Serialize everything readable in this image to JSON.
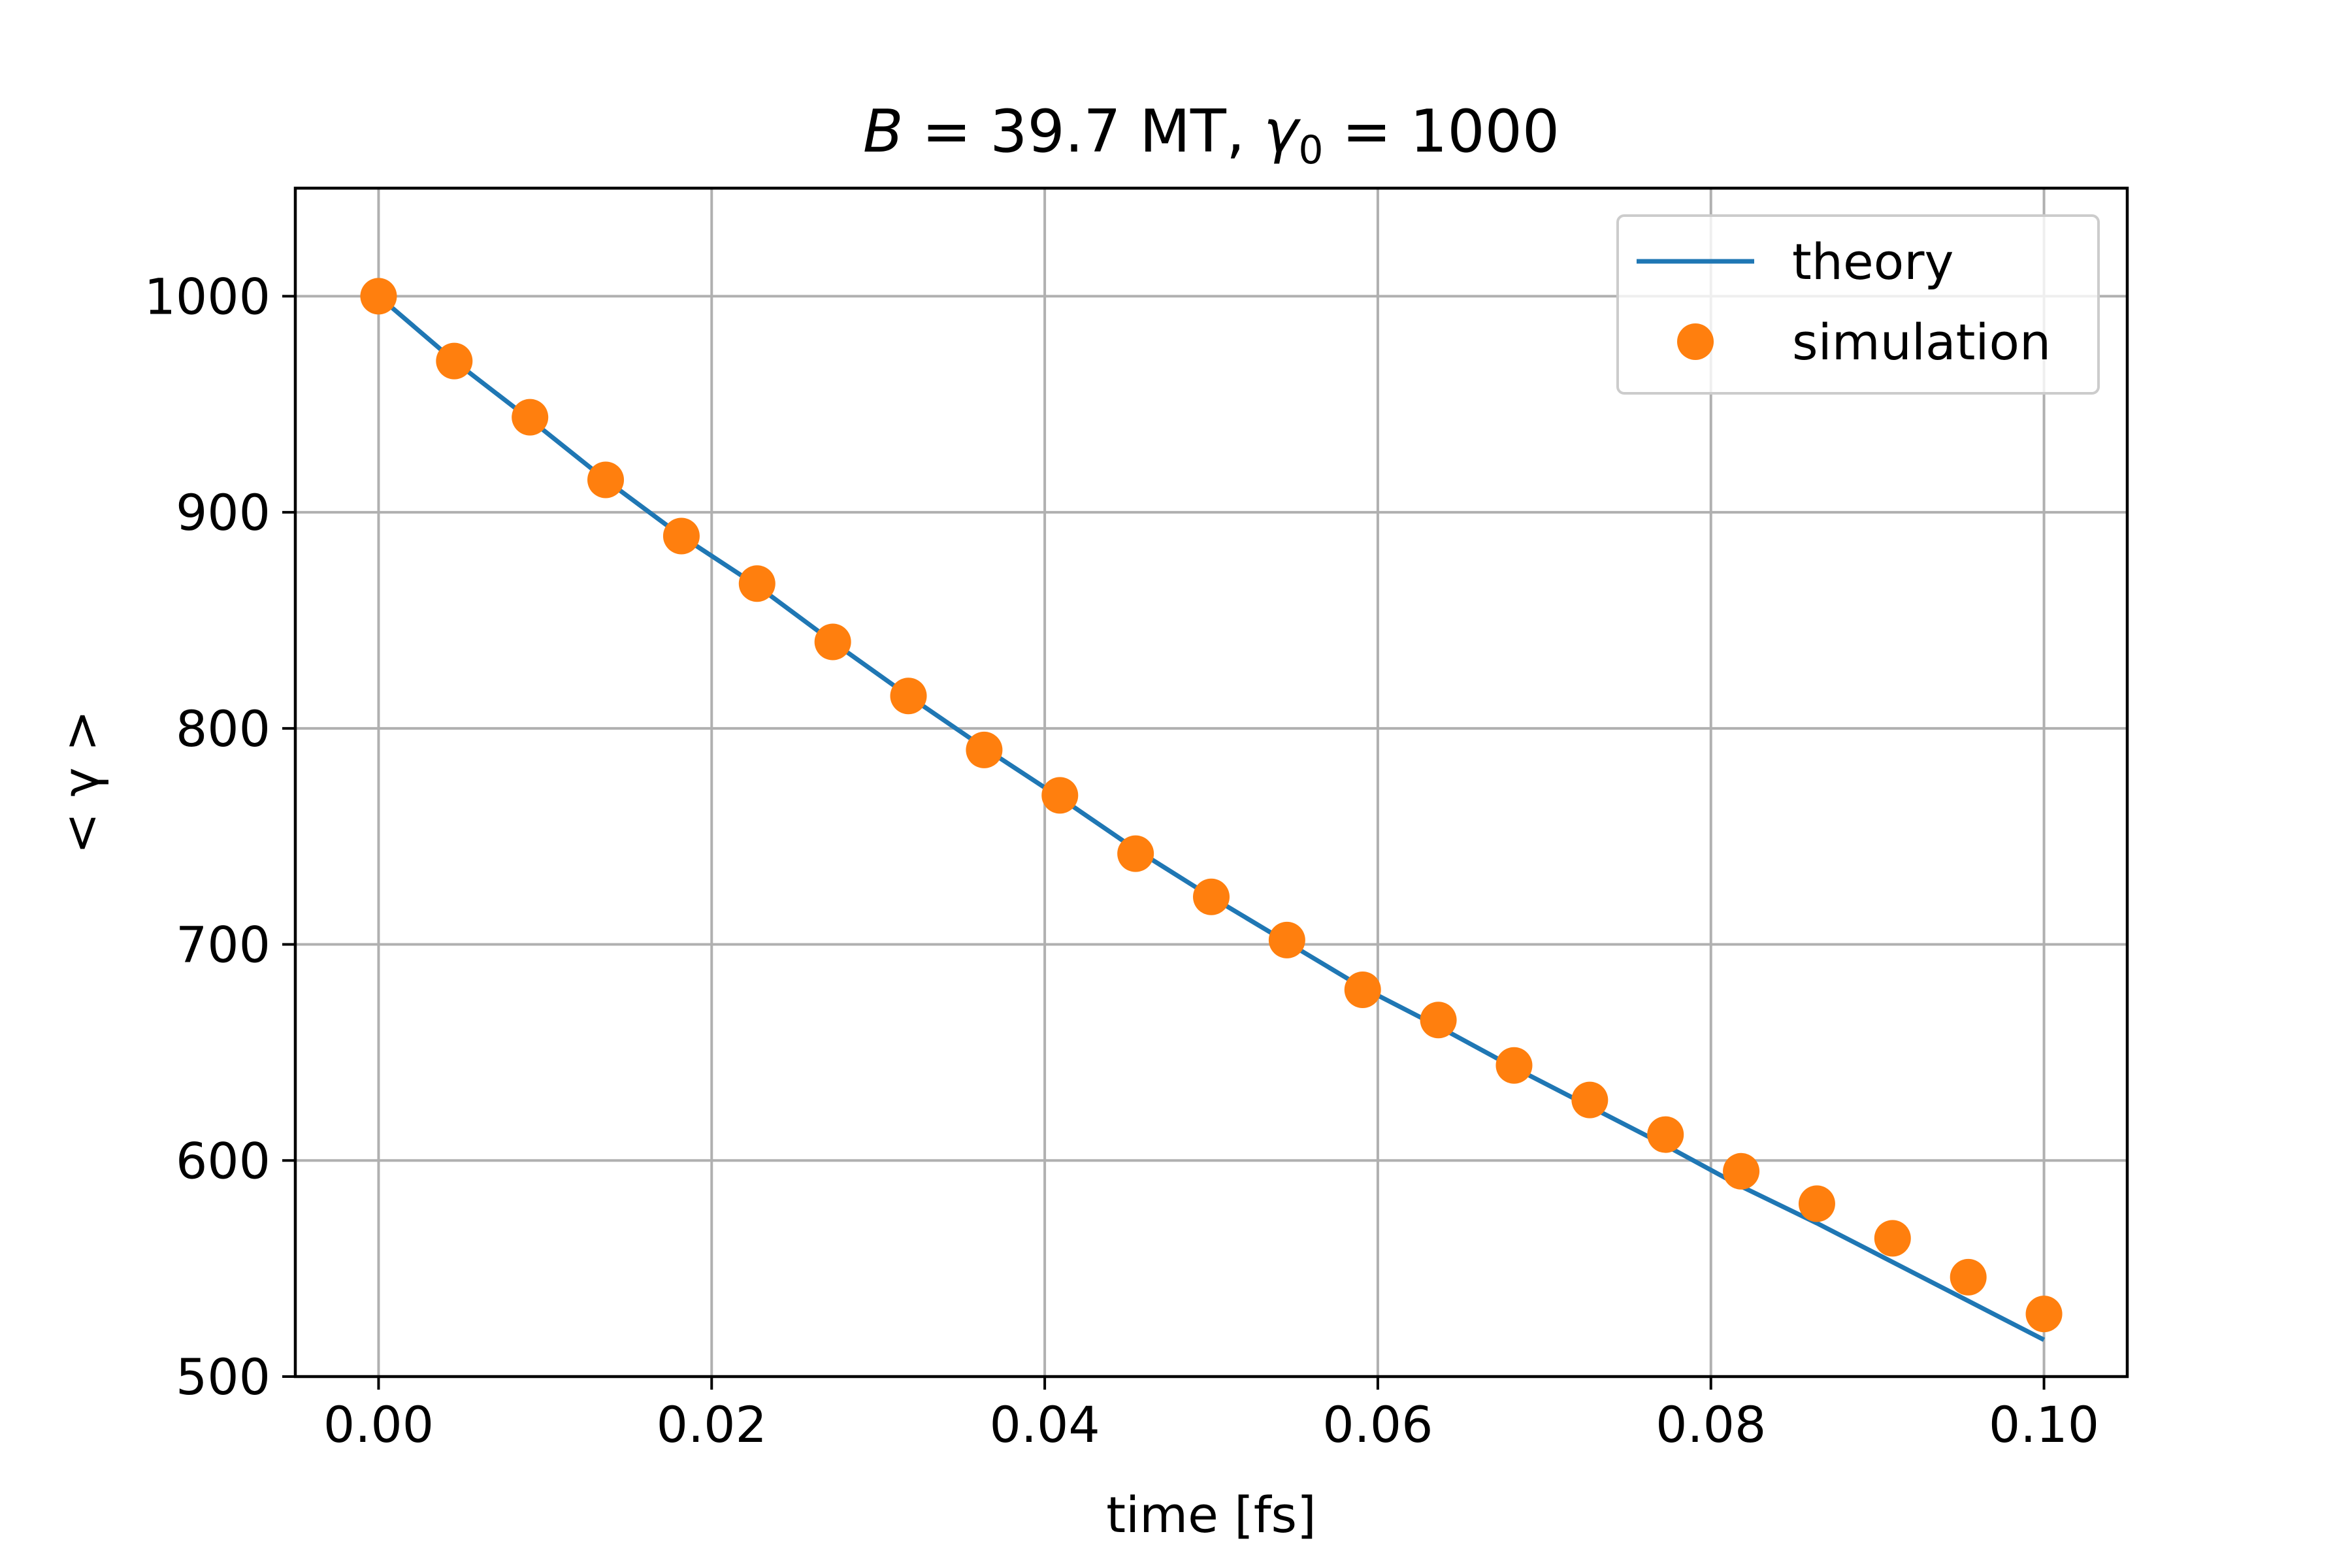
{
  "chart_data": {
    "type": "line",
    "title": "B = 39.7 MT, γ0 = 1000",
    "title_parts": {
      "var": "B",
      "rest1": " = 39.7 MT, ",
      "gamma": "γ",
      "sub": "0",
      "rest2": " = 1000"
    },
    "xlabel": "time [fs]",
    "ylabel": "< γ >",
    "xlim": [
      -0.005,
      0.105
    ],
    "ylim": [
      500,
      1050
    ],
    "xticks": [
      0.0,
      0.02,
      0.04,
      0.06,
      0.08,
      0.1
    ],
    "xtick_labels": [
      "0.00",
      "0.02",
      "0.04",
      "0.06",
      "0.08",
      "0.10"
    ],
    "yticks": [
      500,
      600,
      700,
      800,
      900,
      1000
    ],
    "ytick_labels": [
      "500",
      "600",
      "700",
      "800",
      "900",
      "1000"
    ],
    "grid": true,
    "legend_placement": "top-right",
    "series": [
      {
        "name": "theory",
        "style": "line",
        "color": "#1f77b4",
        "x": [
          0,
          0.004545,
          0.009091,
          0.013636,
          0.018182,
          0.022727,
          0.027273,
          0.031818,
          0.036364,
          0.040909,
          0.045455,
          0.05,
          0.054545,
          0.059091,
          0.063636,
          0.068182,
          0.072727,
          0.077273,
          0.081818,
          0.086364,
          0.090909,
          0.095455,
          0.1
        ],
        "y": [
          1000,
          970,
          943,
          915,
          889,
          866,
          840,
          815,
          791,
          768,
          744,
          722,
          701,
          680,
          662,
          643,
          625,
          607,
          588,
          571,
          553,
          535,
          517
        ]
      },
      {
        "name": "simulation",
        "style": "marker",
        "color": "#ff7f0e",
        "x": [
          0,
          0.004545,
          0.009091,
          0.013636,
          0.018182,
          0.022727,
          0.027273,
          0.031818,
          0.036364,
          0.040909,
          0.045455,
          0.05,
          0.054545,
          0.059091,
          0.063636,
          0.068182,
          0.072727,
          0.077273,
          0.081818,
          0.086364,
          0.090909,
          0.095455,
          0.1
        ],
        "y": [
          1000,
          970,
          944,
          915,
          889,
          867,
          840,
          815,
          790,
          769,
          742,
          722,
          702,
          679,
          665,
          644,
          628,
          612,
          595,
          580,
          564,
          546,
          529
        ]
      }
    ]
  }
}
